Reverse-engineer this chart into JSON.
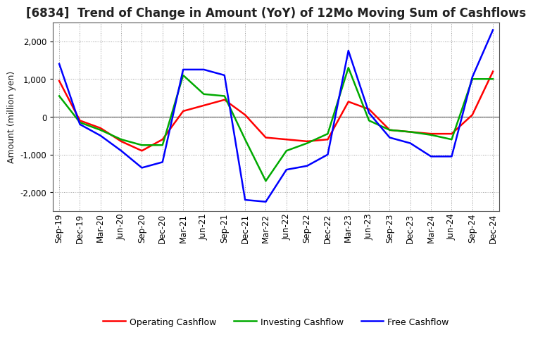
{
  "title": "[6834]  Trend of Change in Amount (YoY) of 12Mo Moving Sum of Cashflows",
  "ylabel": "Amount (million yen)",
  "x_labels": [
    "Sep-19",
    "Dec-19",
    "Mar-20",
    "Jun-20",
    "Sep-20",
    "Dec-20",
    "Mar-21",
    "Jun-21",
    "Sep-21",
    "Dec-21",
    "Mar-22",
    "Jun-22",
    "Sep-22",
    "Dec-22",
    "Mar-23",
    "Jun-23",
    "Sep-23",
    "Dec-23",
    "Mar-24",
    "Jun-24",
    "Sep-24",
    "Dec-24"
  ],
  "operating": [
    950,
    -100,
    -300,
    -650,
    -900,
    -600,
    150,
    300,
    450,
    50,
    -550,
    -600,
    -650,
    -600,
    400,
    200,
    -350,
    -400,
    -450,
    -450,
    50,
    1200
  ],
  "investing": [
    550,
    -150,
    -350,
    -600,
    -750,
    -750,
    1100,
    600,
    550,
    -600,
    -1700,
    -900,
    -700,
    -450,
    1300,
    -100,
    -350,
    -400,
    -480,
    -600,
    1000,
    1000
  ],
  "free": [
    1400,
    -200,
    -500,
    -900,
    -1350,
    -1200,
    1250,
    1250,
    1100,
    -2200,
    -2250,
    -1400,
    -1300,
    -1000,
    1750,
    100,
    -550,
    -700,
    -1050,
    -1050,
    1050,
    2300
  ],
  "operating_color": "#ff0000",
  "investing_color": "#00aa00",
  "free_color": "#0000ff",
  "ylim": [
    -2500,
    2500
  ],
  "yticks": [
    -2000,
    -1000,
    0,
    1000,
    2000
  ],
  "background_color": "#ffffff",
  "grid_color": "#999999",
  "line_width": 1.8,
  "title_fontsize": 12,
  "ylabel_fontsize": 9,
  "tick_fontsize": 8.5,
  "legend_fontsize": 9
}
